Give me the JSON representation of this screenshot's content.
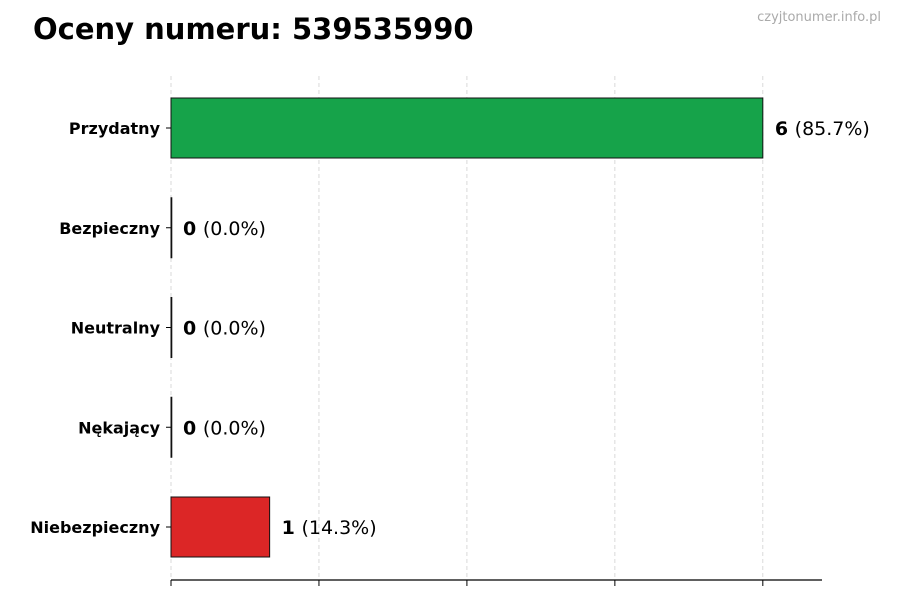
{
  "title": "Oceny numeru: 539535990",
  "watermark": "czyjtonumer.info.pl",
  "chart_data": {
    "type": "bar",
    "orientation": "horizontal",
    "title": "Oceny numeru: 539535990",
    "categories": [
      "Przydatny",
      "Bezpieczny",
      "Neutralny",
      "Nękający",
      "Niebezpieczny"
    ],
    "values": [
      6,
      0,
      0,
      0,
      1
    ],
    "percent_labels": [
      "(85.7%)",
      "(0.0%)",
      "(0.0%)",
      "(0.0%)",
      "(14.3%)"
    ],
    "colors": [
      "#16a34a",
      "#16a34a",
      "#9ca3af",
      "#dc2626",
      "#dc2626"
    ],
    "xlim": [
      0,
      6.6
    ],
    "x_gridlines": [
      0,
      1.5,
      3,
      4.5,
      6
    ],
    "x_tick_labels_shown": false,
    "grid": "x, dashed",
    "xlabel": "",
    "ylabel": ""
  }
}
